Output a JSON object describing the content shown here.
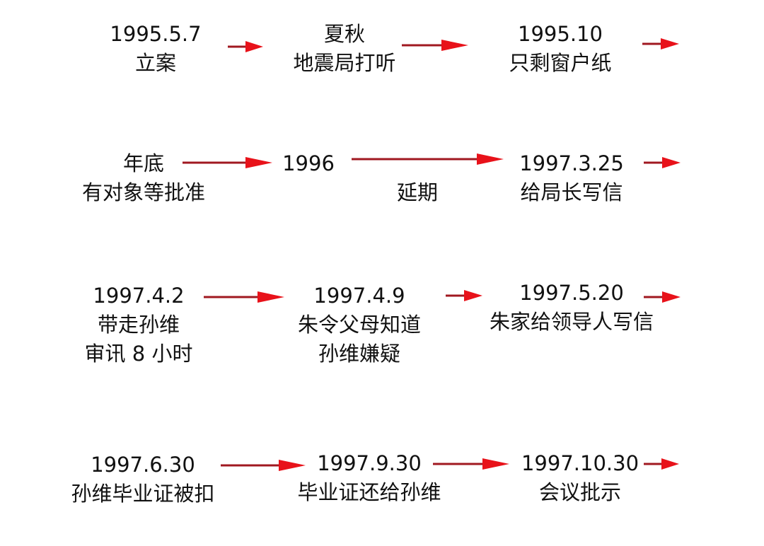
{
  "colors": {
    "arrow_head": "#e8121a",
    "arrow_line": "#a01820",
    "text": "#111111"
  },
  "rows": [
    {
      "nodes": [
        {
          "lines": [
            "1995.5.7",
            "立案"
          ]
        },
        {
          "lines": [
            "夏秋",
            "地震局打听"
          ]
        },
        {
          "lines": [
            "1995.10",
            "只剩窗户纸"
          ]
        }
      ]
    },
    {
      "nodes": [
        {
          "lines": [
            "年底",
            "有对象等批准"
          ]
        },
        {
          "lines": [
            "1996"
          ]
        },
        {
          "lines": [
            "延期"
          ]
        },
        {
          "lines": [
            "1997.3.25",
            "给局长写信"
          ]
        }
      ]
    },
    {
      "nodes": [
        {
          "lines": [
            "1997.4.2",
            "带走孙维",
            "审讯 8 小时"
          ]
        },
        {
          "lines": [
            "1997.4.9",
            "朱令父母知道",
            "孙维嫌疑"
          ]
        },
        {
          "lines": [
            "1997.5.20",
            "朱家给领导人写信"
          ]
        }
      ]
    },
    {
      "nodes": [
        {
          "lines": [
            "1997.6.30",
            "孙维毕业证被扣"
          ]
        },
        {
          "lines": [
            "1997.9.30",
            "毕业证还给孙维"
          ]
        },
        {
          "lines": [
            "1997.10.30",
            "会议批示"
          ]
        }
      ]
    }
  ]
}
